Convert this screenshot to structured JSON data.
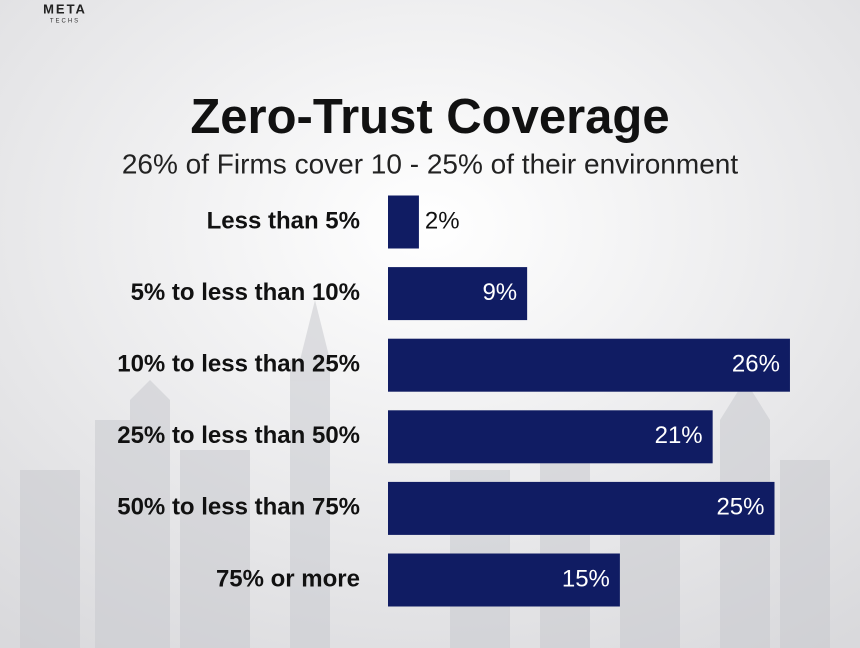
{
  "logo": {
    "name": "META",
    "sub": "TECHS"
  },
  "chart_data": {
    "type": "bar",
    "orientation": "horizontal",
    "title": "Zero-Trust Coverage",
    "subtitle": "26% of Firms cover 10 - 25% of their environment",
    "categories": [
      "Less than 5%",
      "5% to less than 10%",
      "10% to less than 25%",
      "25% to less than 50%",
      "50% to less than 75%",
      "75% or more"
    ],
    "values": [
      2,
      9,
      26,
      21,
      25,
      15
    ],
    "value_labels": [
      "2%",
      "9%",
      "26%",
      "21%",
      "25%",
      "15%"
    ],
    "color": "#101c63"
  }
}
